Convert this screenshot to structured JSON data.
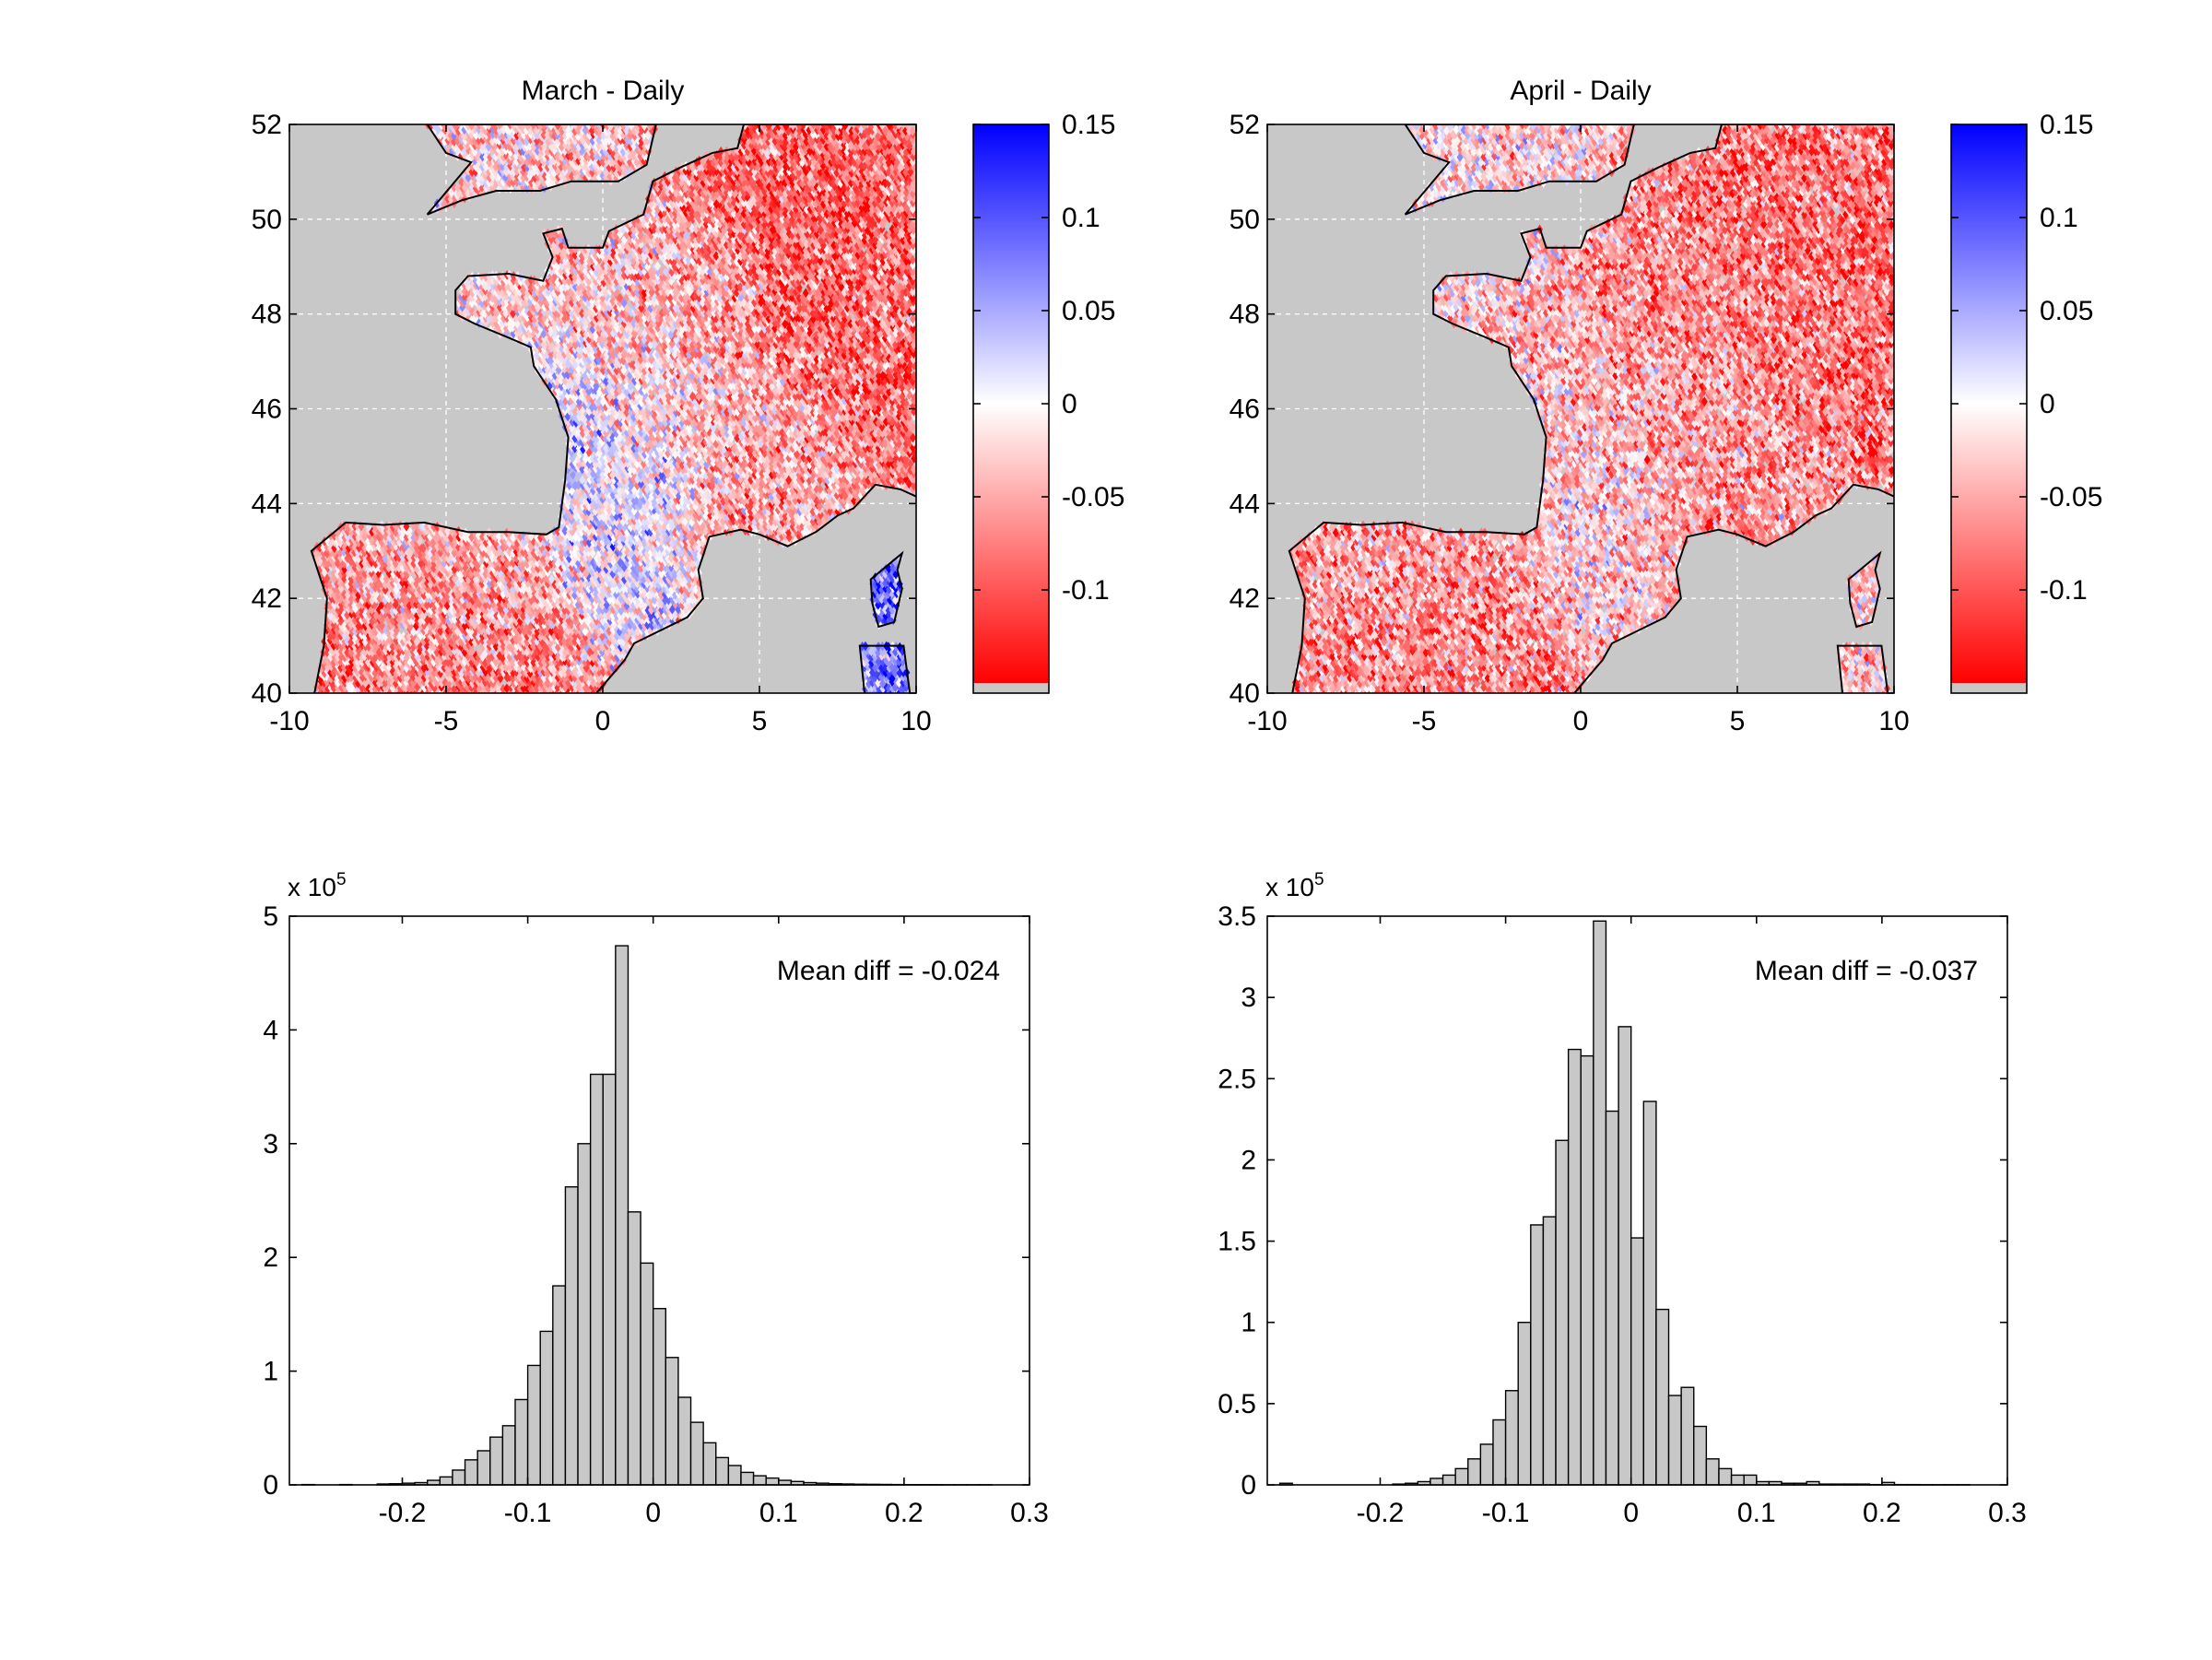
{
  "figure": {
    "colors": {
      "land": "#c8c8c8",
      "coast": "#000000",
      "bar_fill": "#c8c8c8",
      "bar_edge": "#000000",
      "positive": "#0000ff",
      "neutral": "#ffffff",
      "negative": "#ff0000",
      "grid": "#ffffff"
    }
  },
  "chart_data": [
    {
      "type": "heatmap",
      "title": "March - Daily",
      "xlabel": "",
      "ylabel": "",
      "xlim": [
        -10,
        10
      ],
      "ylim": [
        40,
        52
      ],
      "x_ticks": [
        -10,
        -5,
        0,
        5,
        10
      ],
      "x_tick_labels": [
        "-10",
        "-5",
        "0",
        "5",
        "10"
      ],
      "y_ticks": [
        40,
        42,
        44,
        46,
        48,
        50,
        52
      ],
      "y_tick_labels": [
        "40",
        "42",
        "44",
        "46",
        "48",
        "50",
        "52"
      ],
      "grid": true,
      "colorbar": {
        "range": [
          -0.15,
          0.15
        ],
        "ticks": [
          0.15,
          0.1,
          0.05,
          0,
          -0.05,
          -0.1
        ],
        "tick_labels": [
          "0.15",
          "0.1",
          "0.05",
          "0",
          "-0.05",
          "-0.1"
        ],
        "colormap": "red-white-blue"
      },
      "mean_field": {
        "north_east_france": -0.09,
        "central_france": -0.04,
        "south_west_france": 0.02,
        "south_east_france": -0.05,
        "northern_spain": -0.04,
        "central_spain": -0.07,
        "england": -0.03,
        "corsica": 0.08
      }
    },
    {
      "type": "heatmap",
      "title": "April - Daily",
      "xlabel": "",
      "ylabel": "",
      "xlim": [
        -10,
        10
      ],
      "ylim": [
        40,
        52
      ],
      "x_ticks": [
        -10,
        -5,
        0,
        5,
        10
      ],
      "x_tick_labels": [
        "-10",
        "-5",
        "0",
        "5",
        "10"
      ],
      "y_ticks": [
        40,
        42,
        44,
        46,
        48,
        50,
        52
      ],
      "y_tick_labels": [
        "40",
        "42",
        "44",
        "46",
        "48",
        "50",
        "52"
      ],
      "grid": true,
      "colorbar": {
        "range": [
          -0.15,
          0.15
        ],
        "ticks": [
          0.15,
          0.1,
          0.05,
          0,
          -0.05,
          -0.1
        ],
        "tick_labels": [
          "0.15",
          "0.1",
          "0.05",
          "0",
          "-0.05",
          "-0.1"
        ],
        "colormap": "red-white-blue"
      },
      "mean_field": {
        "north_east_france": -0.08,
        "central_france": -0.06,
        "south_west_france": -0.02,
        "south_east_france": -0.06,
        "northern_spain": -0.05,
        "central_spain": -0.07,
        "england": -0.02,
        "corsica": -0.03
      }
    },
    {
      "type": "bar",
      "subtype": "histogram",
      "title": "",
      "xlabel": "",
      "ylabel": "",
      "y_multiplier_label": "x 10",
      "y_multiplier_exponent": "5",
      "xlim": [
        -0.29,
        0.3
      ],
      "ylim": [
        0,
        5
      ],
      "bin_width": 0.01,
      "bin_start": -0.28,
      "counts": [
        0.003,
        0.0,
        0.0,
        0.003,
        0.0,
        0.0,
        0.008,
        0.01,
        0.015,
        0.02,
        0.04,
        0.07,
        0.13,
        0.22,
        0.3,
        0.42,
        0.52,
        0.75,
        1.05,
        1.35,
        1.75,
        2.62,
        3.0,
        3.61,
        3.61,
        4.74,
        2.4,
        1.95,
        1.55,
        1.12,
        0.77,
        0.55,
        0.37,
        0.24,
        0.17,
        0.11,
        0.08,
        0.06,
        0.04,
        0.03,
        0.02,
        0.015,
        0.01,
        0.008,
        0.006,
        0.005,
        0.004,
        0.003,
        0.002,
        0.002,
        0.002,
        0.001,
        0.001,
        0.001,
        0.001
      ],
      "x_ticks": [
        -0.2,
        -0.1,
        0,
        0.1,
        0.2,
        0.3
      ],
      "x_tick_labels": [
        "-0.2",
        "-0.1",
        "0",
        "0.1",
        "0.2",
        "0.3"
      ],
      "y_ticks": [
        0,
        1,
        2,
        3,
        4,
        5
      ],
      "y_tick_labels": [
        "0",
        "1",
        "2",
        "3",
        "4",
        "5"
      ],
      "annotation": "Mean diff = -0.024"
    },
    {
      "type": "bar",
      "subtype": "histogram",
      "title": "",
      "xlabel": "",
      "ylabel": "",
      "y_multiplier_label": "x 10",
      "y_multiplier_exponent": "5",
      "xlim": [
        -0.29,
        0.3
      ],
      "ylim": [
        0,
        3.5
      ],
      "bin_width": 0.01,
      "bin_start": -0.28,
      "counts": [
        0.01,
        0.0,
        0.0,
        0.0,
        0.0,
        0.0,
        0.0,
        0.0,
        0.0,
        0.005,
        0.01,
        0.02,
        0.04,
        0.06,
        0.1,
        0.16,
        0.25,
        0.4,
        0.58,
        1.0,
        1.6,
        1.65,
        2.12,
        2.68,
        2.64,
        3.47,
        2.3,
        2.82,
        1.52,
        2.36,
        1.08,
        0.55,
        0.6,
        0.36,
        0.16,
        0.1,
        0.06,
        0.06,
        0.02,
        0.02,
        0.01,
        0.01,
        0.02,
        0.005,
        0.005,
        0.005,
        0.005,
        0.002,
        0.015,
        0.002,
        0.002,
        0.001,
        0.001,
        0.001,
        0.001
      ],
      "x_ticks": [
        -0.2,
        -0.1,
        0,
        0.1,
        0.2,
        0.3
      ],
      "x_tick_labels": [
        "-0.2",
        "-0.1",
        "0",
        "0.1",
        "0.2",
        "0.3"
      ],
      "y_ticks": [
        0,
        0.5,
        1,
        1.5,
        2,
        2.5,
        3,
        3.5
      ],
      "y_tick_labels": [
        "0",
        "0.5",
        "1",
        "1.5",
        "2",
        "2.5",
        "3",
        "3.5"
      ],
      "annotation": "Mean diff = -0.037"
    }
  ]
}
